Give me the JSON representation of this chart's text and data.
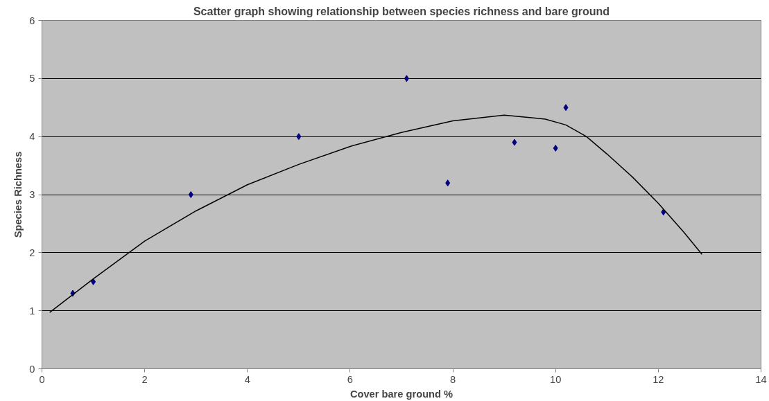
{
  "chart_data": {
    "type": "scatter",
    "title": "Scatter graph showing relationship between species richness and bare ground",
    "xlabel": "Cover bare ground %",
    "ylabel": "Species Richness",
    "xlim": [
      0,
      14
    ],
    "xticks": [
      0,
      2,
      4,
      6,
      8,
      10,
      12,
      14
    ],
    "ylim": [
      0,
      6
    ],
    "yticks": [
      0,
      1,
      2,
      3,
      4,
      5,
      6
    ],
    "grid": "y",
    "series": [
      {
        "marker": "diamond",
        "color": "#000080",
        "x": [
          0.6,
          1.0,
          2.9,
          5.0,
          7.1,
          7.9,
          9.2,
          10.0,
          10.2,
          12.1
        ],
        "values": [
          1.3,
          1.5,
          3.0,
          4.0,
          5.0,
          3.2,
          3.9,
          3.8,
          4.5,
          2.7
        ]
      },
      {
        "type": "line",
        "marker": "none",
        "color": "#000000",
        "x": [
          0.15,
          1,
          2,
          3,
          4,
          5,
          6,
          7,
          8,
          9,
          9.8,
          10.2,
          10.6,
          11,
          11.5,
          12,
          12.5,
          12.85
        ],
        "values": [
          0.97,
          1.55,
          2.2,
          2.72,
          3.17,
          3.52,
          3.83,
          4.07,
          4.27,
          4.37,
          4.3,
          4.2,
          4.0,
          3.7,
          3.3,
          2.85,
          2.35,
          1.97
        ]
      }
    ]
  }
}
